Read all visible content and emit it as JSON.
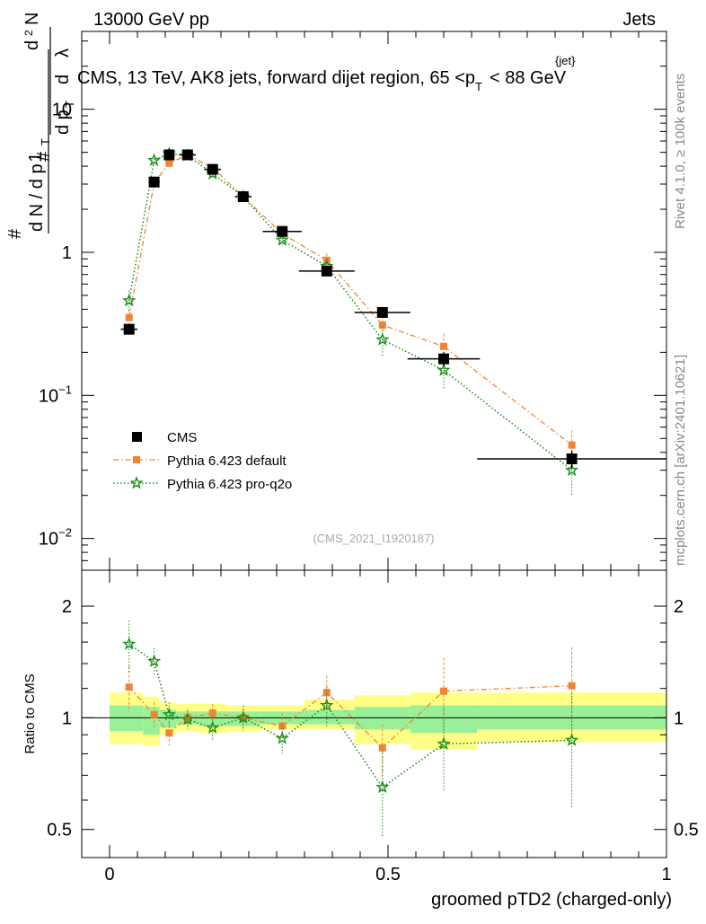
{
  "header": {
    "left": "13000 GeV pp",
    "right": "Jets",
    "plot_title": "CMS, 13 TeV, AK8 jets, forward dijet region, 65 <p",
    "plot_title_sub": "T",
    "plot_title_sup": "{jet}",
    "plot_title_tail": "< 88 GeV",
    "analysis_id": "(CMS_2021_I1920187)",
    "side_rivet": "Rivet 4.1.0, ≥ 100k events",
    "side_mcplots": "mcplots.cern.ch [arXiv:2401.10621]"
  },
  "colors": {
    "cms": "#000000",
    "default": "#f58231",
    "pro": "#1e8c1e",
    "band_outer": "#ffff88",
    "band_inner": "#99f099"
  },
  "chart_data": [
    {
      "type": "scatter",
      "panel": "main",
      "ylog": true,
      "xlim": [
        -0.05,
        1.0
      ],
      "ylim": [
        0.006,
        35
      ],
      "ylabel": "1/(dN/dpT) d²N/(dpT dλ)",
      "yticks": [
        {
          "value": 0.01,
          "base": "10",
          "exp": "−2"
        },
        {
          "value": 0.1,
          "base": "10",
          "exp": "−1"
        },
        {
          "value": 1,
          "base": "1",
          "exp": ""
        },
        {
          "value": 10,
          "base": "10",
          "exp": ""
        }
      ],
      "series": [
        {
          "name": "CMS",
          "style": "square",
          "x": [
            0.035,
            0.08,
            0.107,
            0.14,
            0.185,
            0.24,
            0.31,
            0.39,
            0.49,
            0.6,
            0.83
          ],
          "xerr": [
            0.015,
            0.01,
            0.007,
            0.015,
            0.015,
            0.015,
            0.035,
            0.05,
            0.05,
            0.065,
            0.17
          ],
          "y": [
            0.29,
            3.1,
            4.8,
            4.8,
            3.8,
            2.45,
            1.4,
            0.74,
            0.38,
            0.18,
            0.036
          ],
          "yerr": [
            0.02,
            0.2,
            0.2,
            0.2,
            0.15,
            0.1,
            0.06,
            0.04,
            0.03,
            0.02,
            0.005
          ]
        },
        {
          "name": "Pythia 6.423 default",
          "style": "orange-square-dashdot",
          "x": [
            0.035,
            0.08,
            0.107,
            0.14,
            0.185,
            0.24,
            0.31,
            0.39,
            0.49,
            0.6,
            0.83
          ],
          "y": [
            0.35,
            3.05,
            4.2,
            4.8,
            3.9,
            2.45,
            1.35,
            0.88,
            0.31,
            0.22,
            0.045
          ],
          "yerr": [
            0.05,
            0.25,
            0.3,
            0.3,
            0.25,
            0.2,
            0.12,
            0.1,
            0.05,
            0.05,
            0.012
          ]
        },
        {
          "name": "Pythia 6.423 pro-q2o",
          "style": "green-star-dotted",
          "x": [
            0.035,
            0.08,
            0.107,
            0.14,
            0.185,
            0.24,
            0.31,
            0.39,
            0.49,
            0.6,
            0.83
          ],
          "y": [
            0.46,
            4.4,
            4.9,
            4.75,
            3.55,
            2.45,
            1.22,
            0.8,
            0.245,
            0.15,
            0.03
          ],
          "yerr": [
            0.08,
            0.35,
            0.35,
            0.3,
            0.25,
            0.2,
            0.1,
            0.1,
            0.06,
            0.04,
            0.01
          ]
        }
      ],
      "legend": [
        "CMS",
        "Pythia 6.423 default",
        "Pythia 6.423 pro-q2o"
      ]
    },
    {
      "type": "scatter",
      "panel": "ratio",
      "ylog": true,
      "xlim": [
        -0.05,
        1.0
      ],
      "ylim": [
        0.42,
        2.5
      ],
      "xlabel": "groomed pTD2 (charged-only)",
      "ylabel": "Ratio to CMS",
      "xticks": [
        {
          "value": 0,
          "label": "0"
        },
        {
          "value": 0.5,
          "label": "0.5"
        },
        {
          "value": 1,
          "label": "1"
        }
      ],
      "yticks": [
        {
          "value": 0.5,
          "label": "0.5"
        },
        {
          "value": 1,
          "label": "1"
        },
        {
          "value": 2,
          "label": "2"
        }
      ],
      "band": {
        "x_edges": [
          0.0,
          0.06,
          0.09,
          0.12,
          0.16,
          0.21,
          0.27,
          0.35,
          0.44,
          0.54,
          0.66,
          1.0
        ],
        "outer_lo": [
          0.85,
          0.84,
          0.9,
          0.92,
          0.91,
          0.92,
          0.93,
          0.93,
          0.85,
          0.82,
          0.86
        ],
        "outer_hi": [
          1.17,
          1.14,
          1.1,
          1.09,
          1.09,
          1.08,
          1.08,
          1.12,
          1.15,
          1.17,
          1.17
        ],
        "inner_lo": [
          0.92,
          0.9,
          0.94,
          0.96,
          0.95,
          0.95,
          0.96,
          0.96,
          0.93,
          0.91,
          0.93
        ],
        "inner_hi": [
          1.08,
          1.07,
          1.05,
          1.04,
          1.04,
          1.04,
          1.04,
          1.05,
          1.07,
          1.08,
          1.08
        ]
      },
      "series": [
        {
          "name": "Pythia 6.423 default",
          "x": [
            0.035,
            0.08,
            0.107,
            0.14,
            0.185,
            0.24,
            0.31,
            0.39,
            0.49,
            0.6,
            0.83
          ],
          "y": [
            1.21,
            1.02,
            0.91,
            1.0,
            1.03,
            1.0,
            0.95,
            1.17,
            0.83,
            1.18,
            1.22
          ],
          "yerr": [
            0.17,
            0.08,
            0.07,
            0.05,
            0.06,
            0.06,
            0.08,
            0.13,
            0.13,
            0.27,
            0.33
          ]
        },
        {
          "name": "Pythia 6.423 pro-q2o",
          "x": [
            0.035,
            0.08,
            0.107,
            0.14,
            0.185,
            0.24,
            0.31,
            0.39,
            0.49,
            0.6,
            0.83
          ],
          "y": [
            1.58,
            1.42,
            1.02,
            0.99,
            0.94,
            1.0,
            0.88,
            1.08,
            0.65,
            0.85,
            0.87
          ],
          "yerr": [
            0.25,
            0.12,
            0.08,
            0.06,
            0.07,
            0.08,
            0.08,
            0.13,
            0.17,
            0.22,
            0.3
          ]
        }
      ]
    }
  ]
}
